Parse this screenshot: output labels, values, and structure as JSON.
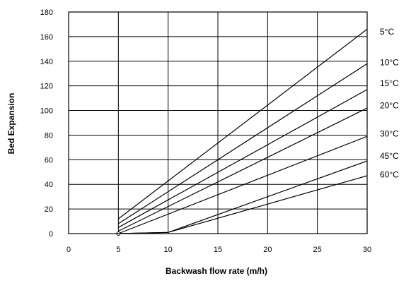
{
  "chart_data": {
    "type": "line",
    "title": "",
    "xlabel": "Backwash flow rate (m/h)",
    "ylabel": "Bed  Expansion",
    "xlim": [
      0,
      30
    ],
    "ylim": [
      0,
      180
    ],
    "xticks": [
      0,
      5,
      10,
      15,
      20,
      25,
      30
    ],
    "yticks": [
      0,
      20,
      40,
      60,
      80,
      100,
      120,
      140,
      160,
      180
    ],
    "grid": true,
    "series": [
      {
        "name": "5°C",
        "x": [
          5,
          30
        ],
        "y": [
          12,
          166
        ]
      },
      {
        "name": "10°C",
        "x": [
          5,
          30
        ],
        "y": [
          8,
          138
        ]
      },
      {
        "name": "15°C",
        "x": [
          5,
          30
        ],
        "y": [
          5,
          117
        ]
      },
      {
        "name": "20°C",
        "x": [
          5,
          30
        ],
        "y": [
          2,
          102
        ]
      },
      {
        "name": "30°C",
        "x": [
          5,
          30
        ],
        "y": [
          0,
          79
        ]
      },
      {
        "name": "45°C",
        "x": [
          5,
          10,
          30
        ],
        "y": [
          0,
          1,
          59
        ]
      },
      {
        "name": "60°C",
        "x": [
          5,
          10,
          30
        ],
        "y": [
          0,
          1,
          47
        ]
      }
    ],
    "series_label_y": [
      164,
      139,
      122,
      104,
      81,
      63,
      48
    ]
  }
}
